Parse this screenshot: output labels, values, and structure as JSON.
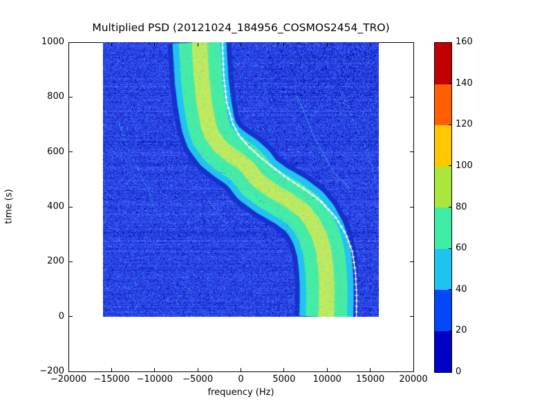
{
  "title": "Multiplied PSD (20121024_184956_COSMOS2454_TRO)",
  "axes": {
    "xlabel": "frequency (Hz)",
    "ylabel": "time (s)",
    "x_tick_values": [
      -20000,
      -15000,
      -10000,
      -5000,
      0,
      5000,
      10000,
      15000,
      20000
    ],
    "x_tick_labels": [
      "−20000",
      "−15000",
      "−10000",
      "−5000",
      "0",
      "5000",
      "10000",
      "15000",
      "20000"
    ],
    "y_tick_values": [
      1000,
      800,
      600,
      400,
      200,
      0,
      -200
    ],
    "y_tick_labels": [
      "1000",
      "800",
      "600",
      "400",
      "200",
      "0",
      "−200"
    ],
    "xlim": [
      -20000,
      20000
    ],
    "ylim": [
      -200,
      1000
    ]
  },
  "colorbar": {
    "tick_values": [
      0,
      20,
      40,
      60,
      80,
      100,
      120,
      140,
      160
    ],
    "tick_labels": [
      "0",
      "20",
      "40",
      "60",
      "80",
      "100",
      "120",
      "140",
      "160"
    ],
    "levels_bottom_up": [
      {
        "range": [
          0,
          20
        ],
        "color": "#0000C6"
      },
      {
        "range": [
          20,
          40
        ],
        "color": "#0347FB"
      },
      {
        "range": [
          40,
          60
        ],
        "color": "#1FC3F0"
      },
      {
        "range": [
          60,
          80
        ],
        "color": "#3FEDA4"
      },
      {
        "range": [
          80,
          100
        ],
        "color": "#AAE63C"
      },
      {
        "range": [
          100,
          120
        ],
        "color": "#FFC800"
      },
      {
        "range": [
          120,
          140
        ],
        "color": "#FF5F00"
      },
      {
        "range": [
          140,
          160
        ],
        "color": "#C00000"
      }
    ]
  },
  "chart_data": {
    "type": "heatmap",
    "subtype": "doppler-spectrogram",
    "title": "Multiplied PSD (20121024_184956_COSMOS2454_TRO)",
    "xlabel": "frequency (Hz)",
    "ylabel": "time (s)",
    "xlim": [
      -20000,
      20000
    ],
    "ylim": [
      -200,
      1000
    ],
    "value_scale": [
      0,
      160
    ],
    "data_extent": {
      "freq_hz": [
        -16000,
        16000
      ],
      "time_s": [
        0,
        1000
      ]
    },
    "background": {
      "mean_value": 30,
      "description": "noisy blue speckle, values ~10-45, sparse navy (<20) and cyan (~50) dots, faint horizontal striping"
    },
    "palette": {
      "base": "#2D4BEB",
      "dark1": "#1A2DD8",
      "dark2": "#0A14B4",
      "navy": "#000096",
      "light": "#4B69F2",
      "cyan_dot": "#32AAE8",
      "dark_edge": "#1530CE",
      "cyan": "#22C3F2",
      "aqua": "#46EDA6",
      "core": "#C8EA5E",
      "core2": "#A0E06E",
      "overlay": "#FFFFFF",
      "arc": "#4FC0EE"
    },
    "main_track": {
      "description": "S-shaped satellite Doppler track; center frequency vs time",
      "core_value": 95,
      "body_value": 70,
      "inner_edge_value": 50,
      "outer_edge_value": 12,
      "widths_hz": {
        "core": 1760,
        "body": 4800,
        "inner_edge": 6250,
        "outer_edge": 7380
      },
      "points_time_freq": [
        [
          0,
          9900
        ],
        [
          60,
          9960
        ],
        [
          120,
          9950
        ],
        [
          180,
          9840
        ],
        [
          240,
          9600
        ],
        [
          300,
          9050
        ],
        [
          350,
          8200
        ],
        [
          385,
          7300
        ],
        [
          420,
          5800
        ],
        [
          460,
          3600
        ],
        [
          500,
          1850
        ],
        [
          540,
          900
        ],
        [
          565,
          0
        ],
        [
          590,
          -1200
        ],
        [
          620,
          -2400
        ],
        [
          660,
          -3350
        ],
        [
          700,
          -3800
        ],
        [
          780,
          -4250
        ],
        [
          860,
          -4550
        ],
        [
          1000,
          -4820
        ]
      ]
    },
    "overlay_curve": {
      "description": "white fitted Doppler curve with + markers, right of track center",
      "color": "#FFFFFF",
      "marker": "+",
      "points_time_freq": [
        [
          0,
          13400
        ],
        [
          80,
          13420
        ],
        [
          160,
          13300
        ],
        [
          240,
          12900
        ],
        [
          300,
          12200
        ],
        [
          360,
          11050
        ],
        [
          420,
          9300
        ],
        [
          460,
          7600
        ],
        [
          500,
          5600
        ],
        [
          540,
          3900
        ],
        [
          580,
          2300
        ],
        [
          620,
          900
        ],
        [
          660,
          -200
        ],
        [
          700,
          -900
        ],
        [
          780,
          -1650
        ],
        [
          880,
          -2000
        ],
        [
          1000,
          -2150
        ]
      ]
    },
    "faint_tracks": [
      {
        "alpha": 0.75,
        "dash": [
          5,
          3
        ],
        "points_time_freq": [
          [
            380,
            -9900
          ],
          [
            460,
            -10700
          ],
          [
            580,
            -12700
          ],
          [
            710,
            -14200
          ]
        ]
      },
      {
        "alpha": 0.8,
        "dash": null,
        "points_time_freq": [
          [
            495,
            -1950
          ],
          [
            560,
            -4500
          ],
          [
            610,
            -5900
          ],
          [
            655,
            -7300
          ]
        ]
      },
      {
        "alpha": 0.7,
        "dash": [
          6,
          3
        ],
        "points_time_freq": [
          [
            320,
            -1250
          ],
          [
            370,
            -2500
          ],
          [
            430,
            -3900
          ]
        ]
      },
      {
        "alpha": 0.5,
        "dash": null,
        "points_time_freq": [
          [
            425,
            -14500
          ],
          [
            460,
            -15800
          ]
        ]
      },
      {
        "alpha": 0.8,
        "dash": null,
        "points_time_freq": [
          [
            466,
            12700
          ],
          [
            524,
            10800
          ],
          [
            650,
            8550
          ],
          [
            808,
            6500
          ]
        ]
      },
      {
        "alpha": 0.7,
        "dash": [
          7,
          3
        ],
        "points_time_freq": [
          [
            498,
            15600
          ],
          [
            599,
            14800
          ],
          [
            700,
            13200
          ],
          [
            834,
            11600
          ]
        ]
      }
    ]
  }
}
